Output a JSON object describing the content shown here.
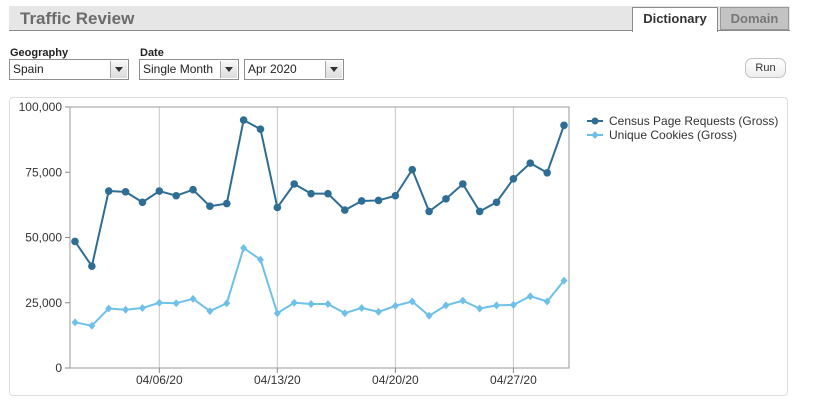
{
  "header": {
    "title": "Traffic Review"
  },
  "tabs": [
    {
      "label": "Dictionary",
      "active": true
    },
    {
      "label": "Domain",
      "active": false
    }
  ],
  "filters": {
    "geography": {
      "label": "Geography",
      "value": "Spain"
    },
    "date": {
      "label": "Date",
      "value": "Single Month"
    },
    "month": {
      "value": "Apr 2020"
    }
  },
  "run_label": "Run",
  "colors": {
    "series1": "#2e6d94",
    "series2": "#6ec0e8",
    "grid": "#c8c8c8"
  },
  "chart_data": {
    "type": "line",
    "x": [
      "2020-04-01",
      "2020-04-02",
      "2020-04-03",
      "2020-04-04",
      "2020-04-05",
      "2020-04-06",
      "2020-04-07",
      "2020-04-08",
      "2020-04-09",
      "2020-04-10",
      "2020-04-11",
      "2020-04-12",
      "2020-04-13",
      "2020-04-14",
      "2020-04-15",
      "2020-04-16",
      "2020-04-17",
      "2020-04-18",
      "2020-04-19",
      "2020-04-20",
      "2020-04-21",
      "2020-04-22",
      "2020-04-23",
      "2020-04-24",
      "2020-04-25",
      "2020-04-26",
      "2020-04-27",
      "2020-04-28",
      "2020-04-29",
      "2020-04-30"
    ],
    "x_tick_labels": [
      "04/06/20",
      "04/13/20",
      "04/20/20",
      "04/27/20"
    ],
    "x_tick_dates": [
      "2020-04-06",
      "2020-04-13",
      "2020-04-20",
      "2020-04-27"
    ],
    "y_tick_labels": [
      "0",
      "25,000",
      "50,000",
      "75,000",
      "100,000"
    ],
    "ylim": [
      0,
      100000
    ],
    "grid": "vertical",
    "legend_position": "right",
    "series": [
      {
        "name": "Census Page Requests (Gross)",
        "marker": "circle",
        "color": "#2e6d94",
        "values": [
          48500,
          39000,
          67800,
          67500,
          63500,
          67800,
          66000,
          68300,
          62000,
          63000,
          95000,
          91500,
          61500,
          70500,
          66800,
          66800,
          60500,
          64000,
          64200,
          66000,
          76000,
          60000,
          64800,
          70500,
          60000,
          63500,
          72500,
          78500,
          74800,
          93000
        ]
      },
      {
        "name": "Unique Cookies (Gross)",
        "marker": "diamond",
        "color": "#6ec0e8",
        "values": [
          17500,
          16200,
          22800,
          22300,
          23000,
          25000,
          24800,
          26500,
          21800,
          24800,
          46000,
          41500,
          21000,
          25000,
          24500,
          24500,
          21000,
          23000,
          21500,
          23800,
          25500,
          20000,
          24000,
          25800,
          22800,
          24000,
          24200,
          27500,
          25500,
          33500
        ]
      }
    ]
  }
}
